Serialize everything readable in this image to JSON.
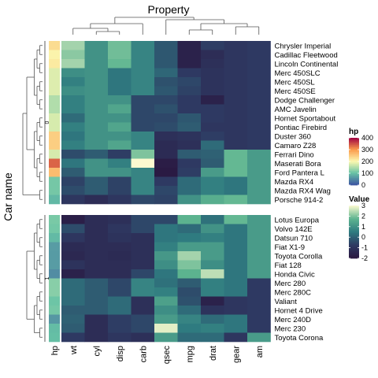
{
  "chart_data": {
    "type": "heatmap",
    "title": "Property",
    "ylabel": "Car name",
    "columns": [
      "wt",
      "cyl",
      "disp",
      "carb",
      "qsec",
      "mpg",
      "drat",
      "gear",
      "am"
    ],
    "annotation_column": "hp",
    "row_split_labels": [
      "0",
      "1"
    ],
    "groups": [
      {
        "split": "0",
        "rows": [
          {
            "name": "Chrysler Imperial",
            "hp": 230,
            "values": [
              2.3,
              1.0,
              1.9,
              0.7,
              -0.2,
              -1.6,
              -0.7,
              -0.9,
              -0.8
            ]
          },
          {
            "name": "Cadillac Fleetwood",
            "hp": 205,
            "values": [
              2.1,
              1.0,
              1.9,
              0.7,
              -0.2,
              -1.6,
              -1.2,
              -0.9,
              -0.8
            ]
          },
          {
            "name": "Lincoln Continental",
            "hp": 215,
            "values": [
              2.3,
              1.0,
              1.8,
              0.7,
              -0.2,
              -1.6,
              -1.1,
              -0.9,
              -0.8
            ]
          },
          {
            "name": "Merc 450SLC",
            "hp": 180,
            "values": [
              0.9,
              1.0,
              0.4,
              0.7,
              0.1,
              -0.8,
              -1.0,
              -0.9,
              -0.8
            ]
          },
          {
            "name": "Merc 450SL",
            "hp": 180,
            "values": [
              0.6,
              1.0,
              0.4,
              0.7,
              -0.3,
              -0.5,
              -1.0,
              -0.9,
              -0.8
            ]
          },
          {
            "name": "Merc 450SE",
            "hp": 180,
            "values": [
              0.9,
              1.0,
              0.4,
              0.7,
              -0.2,
              -0.6,
              -1.0,
              -0.9,
              -0.8
            ]
          },
          {
            "name": "Dodge Challenger",
            "hp": 150,
            "values": [
              0.6,
              1.0,
              1.0,
              -0.5,
              -0.5,
              -0.8,
              -1.6,
              -0.9,
              -0.8
            ]
          },
          {
            "name": "AMC Javelin",
            "hp": 150,
            "values": [
              0.6,
              1.0,
              1.4,
              -0.5,
              -0.3,
              -0.8,
              -0.8,
              -0.9,
              -0.8
            ]
          },
          {
            "name": "Hornet Sportabout",
            "hp": 175,
            "values": [
              0.2,
              1.0,
              1.0,
              -0.5,
              -0.5,
              -0.2,
              -0.8,
              -0.9,
              -0.8
            ]
          },
          {
            "name": "Pontiac Firebird",
            "hp": 175,
            "values": [
              0.6,
              1.0,
              1.4,
              -0.5,
              -0.4,
              -0.1,
              -0.9,
              -0.9,
              -0.8
            ]
          },
          {
            "name": "Duster 360",
            "hp": 245,
            "values": [
              0.4,
              1.0,
              1.0,
              0.7,
              -1.1,
              -1.0,
              -0.7,
              -0.9,
              -0.8
            ]
          },
          {
            "name": "Camaro Z28",
            "hp": 245,
            "values": [
              0.6,
              1.0,
              1.4,
              0.7,
              -1.3,
              -1.1,
              0.2,
              -0.9,
              -0.8
            ]
          },
          {
            "name": "Ferrari Dino",
            "hp": 175,
            "values": [
              -0.4,
              -0.1,
              -0.7,
              2.0,
              -1.3,
              -0.1,
              0.0,
              1.8,
              1.2
            ]
          },
          {
            "name": "Maserati Bora",
            "hp": 335,
            "values": [
              0.4,
              1.0,
              0.6,
              3.2,
              -1.8,
              -0.8,
              -0.1,
              1.8,
              1.2
            ]
          },
          {
            "name": "Ford Pantera L",
            "hp": 264,
            "values": [
              -0.1,
              1.0,
              1.0,
              0.7,
              -1.9,
              -0.7,
              1.2,
              1.8,
              1.2
            ]
          },
          {
            "name": "Mazda RX4",
            "hp": 110,
            "values": [
              -0.6,
              -0.1,
              -0.6,
              0.7,
              -0.8,
              0.2,
              0.6,
              0.4,
              1.2
            ]
          },
          {
            "name": "Mazda RX4 Wag",
            "hp": 110,
            "values": [
              -0.4,
              -0.1,
              -0.6,
              0.7,
              -0.5,
              0.2,
              0.6,
              0.4,
              1.2
            ]
          },
          {
            "name": "Porsche 914-2",
            "hp": 91,
            "values": [
              -0.9,
              -1.2,
              -0.9,
              -0.5,
              -0.6,
              1.0,
              1.6,
              1.8,
              1.2
            ]
          }
        ]
      },
      {
        "split": "1",
        "rows": [
          {
            "name": "Lotus Europa",
            "hp": 113,
            "values": [
              -1.7,
              -1.2,
              -1.1,
              -0.5,
              -0.5,
              1.7,
              0.3,
              1.8,
              1.2
            ]
          },
          {
            "name": "Volvo 142E",
            "hp": 109,
            "values": [
              -0.4,
              -1.2,
              -0.9,
              -0.5,
              0.4,
              0.2,
              1.0,
              0.4,
              1.2
            ]
          },
          {
            "name": "Datsun 710",
            "hp": 93,
            "values": [
              -0.9,
              -1.2,
              -1.0,
              -1.1,
              0.4,
              0.5,
              0.6,
              0.4,
              1.2
            ]
          },
          {
            "name": "Fiat X1-9",
            "hp": 66,
            "values": [
              -1.3,
              -1.2,
              -1.2,
              -1.1,
              0.6,
              1.2,
              1.2,
              0.4,
              1.2
            ]
          },
          {
            "name": "Toyota Corolla",
            "hp": 65,
            "values": [
              -1.4,
              -1.2,
              -1.3,
              -1.1,
              1.1,
              2.3,
              1.2,
              0.4,
              1.2
            ]
          },
          {
            "name": "Fiat 128",
            "hp": 66,
            "values": [
              -1.0,
              -1.2,
              -1.2,
              -1.1,
              0.9,
              2.0,
              0.9,
              0.4,
              1.2
            ]
          },
          {
            "name": "Honda Civic",
            "hp": 52,
            "values": [
              -1.6,
              -1.2,
              -1.2,
              -0.5,
              0.4,
              1.7,
              2.5,
              0.4,
              1.2
            ]
          },
          {
            "name": "Merc 280",
            "hp": 123,
            "values": [
              0.2,
              -0.1,
              -0.5,
              0.7,
              0.3,
              -0.1,
              0.6,
              0.4,
              -0.8
            ]
          },
          {
            "name": "Merc 280C",
            "hp": 123,
            "values": [
              0.2,
              -0.1,
              -0.5,
              0.7,
              0.6,
              -0.4,
              0.6,
              0.4,
              -0.8
            ]
          },
          {
            "name": "Valiant",
            "hp": 105,
            "values": [
              0.2,
              -0.1,
              0.2,
              -1.1,
              1.3,
              -0.3,
              -1.6,
              -0.9,
              -0.8
            ]
          },
          {
            "name": "Hornet 4 Drive",
            "hp": 110,
            "values": [
              -0.1,
              -0.1,
              0.2,
              -1.1,
              0.9,
              0.2,
              -1.0,
              -0.9,
              -0.8
            ]
          },
          {
            "name": "Merc 240D",
            "hp": 62,
            "values": [
              0.0,
              -1.2,
              -0.7,
              -0.5,
              1.2,
              0.7,
              0.2,
              0.4,
              -0.8
            ]
          },
          {
            "name": "Merc 230",
            "hp": 95,
            "values": [
              -0.1,
              -1.2,
              -0.7,
              -0.5,
              2.8,
              0.5,
              0.6,
              0.4,
              -0.8
            ]
          },
          {
            "name": "Toyota Corona",
            "hp": 97,
            "values": [
              -0.8,
              -1.2,
              -0.9,
              -1.1,
              1.2,
              0.2,
              0.2,
              -0.9,
              1.2
            ]
          }
        ]
      }
    ],
    "legends": [
      {
        "title": "hp",
        "ticks": [
          0,
          100,
          200,
          300,
          400
        ],
        "range": [
          0,
          400
        ],
        "colors": [
          "#3c52a1",
          "#66c2a5",
          "#fbf8b0",
          "#fb9a4a",
          "#9e0142"
        ]
      },
      {
        "title": "Value",
        "ticks": [
          -2,
          -1,
          0,
          1,
          2,
          3
        ],
        "range": [
          -2,
          3
        ],
        "colors": [
          "#2a1740",
          "#2e3a63",
          "#2f7b80",
          "#5eb590",
          "#fdfad0"
        ]
      }
    ]
  }
}
